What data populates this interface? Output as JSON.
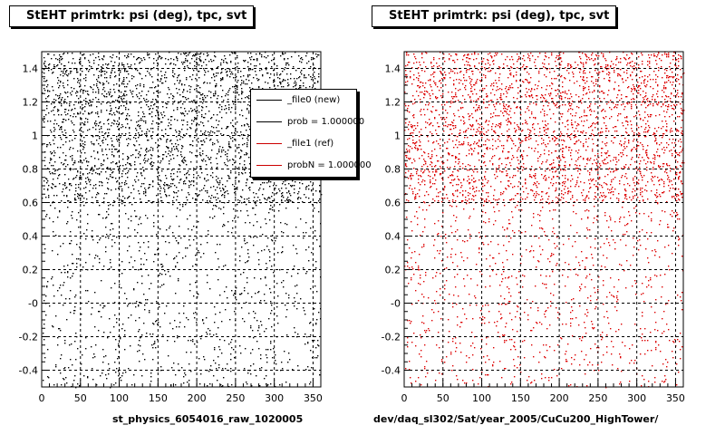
{
  "window": {
    "footer_left": "st_physics_6054016_raw_1020005",
    "footer_right": "dev/daq_sl302/Sat/year_2005/CuCu200_HighTower/"
  },
  "legend": {
    "placement": "top-right of left panel",
    "entries": [
      {
        "label": "_file0 (new)",
        "color": "#000000"
      },
      {
        "label": "prob = 1.000000",
        "color": "#000000"
      },
      {
        "label": "_file1 (ref)",
        "color": "#cc0000"
      },
      {
        "label": "probN = 1.000000",
        "color": "#cc0000"
      }
    ]
  },
  "colors": {
    "new_markers": "#000000",
    "ref_markers": "#dd0000",
    "frame": "#000000"
  },
  "chart_data": [
    {
      "type": "scatter",
      "title": "StEHT primtrk: psi (deg), tpc, svt",
      "xlabel": "",
      "ylabel": "",
      "xlim": [
        0,
        360
      ],
      "ylim": [
        -0.5,
        1.5
      ],
      "grid": true,
      "x_ticks": [
        "0",
        "50",
        "100",
        "150",
        "200",
        "250",
        "300",
        "350"
      ],
      "y_ticks": [
        "-0.4",
        "-0.2",
        "-0",
        "0.2",
        "0.4",
        "0.6",
        "0.8",
        "1",
        "1.2",
        "1.4"
      ],
      "series": [
        {
          "name": "_file0 (new)",
          "color": "#000000",
          "density": "uniform, denser above 0.6"
        }
      ]
    },
    {
      "type": "scatter",
      "title": "StEHT primtrk: psi (deg), tpc, svt",
      "xlabel": "",
      "ylabel": "",
      "xlim": [
        0,
        360
      ],
      "ylim": [
        -0.5,
        1.5
      ],
      "grid": true,
      "x_ticks": [
        "0",
        "50",
        "100",
        "150",
        "200",
        "250",
        "300",
        "350"
      ],
      "y_ticks": [
        "-0.4",
        "-0.2",
        "-0",
        "0.2",
        "0.4",
        "0.6",
        "0.8",
        "1",
        "1.2",
        "1.4"
      ],
      "series": [
        {
          "name": "_file1 (ref)",
          "color": "#dd0000",
          "density": "uniform, denser above 0.6"
        }
      ]
    }
  ]
}
